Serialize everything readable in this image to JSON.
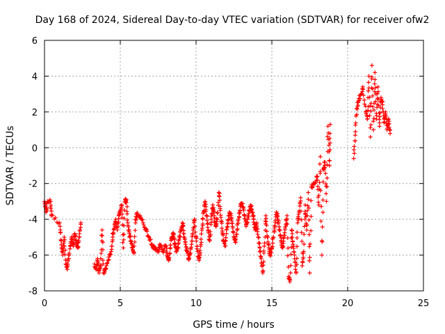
{
  "chart_data": {
    "type": "scatter",
    "title": "Day 168 of 2024, Sidereal Day-to-day VTEC variation (SDTVAR) for receiver ofw2",
    "xlabel": "GPS time / hours",
    "ylabel": "SDTVAR / TECUs",
    "xlim": [
      0,
      25
    ],
    "ylim": [
      -8,
      6
    ],
    "xticks": [
      0,
      5,
      10,
      15,
      20,
      25
    ],
    "yticks": [
      -8,
      -6,
      -4,
      -2,
      0,
      2,
      4,
      6
    ],
    "grid": true,
    "marker": "+",
    "color": "#ff0000",
    "series": [
      {
        "name": "SDTVAR",
        "trace": [
          [
            0.0,
            -3.0
          ],
          [
            0.1,
            -3.6
          ],
          [
            0.2,
            -3.0
          ],
          [
            0.4,
            -3.0
          ],
          [
            0.45,
            -3.8
          ],
          [
            1.0,
            -4.2
          ],
          [
            1.1,
            -5.2
          ],
          [
            1.2,
            -6.0
          ],
          [
            1.3,
            -5.0
          ],
          [
            1.4,
            -6.5
          ],
          [
            1.5,
            -6.8
          ],
          [
            1.6,
            -6.2
          ],
          [
            1.7,
            -5.5
          ],
          [
            1.8,
            -5.0
          ],
          [
            1.9,
            -5.5
          ],
          [
            2.0,
            -4.8
          ],
          [
            2.1,
            -5.2
          ],
          [
            2.2,
            -5.6
          ],
          [
            2.3,
            -5.0
          ],
          [
            2.4,
            -4.2
          ],
          [
            3.3,
            -6.5
          ],
          [
            3.4,
            -6.8
          ],
          [
            3.5,
            -6.2
          ],
          [
            3.6,
            -7.0
          ],
          [
            3.7,
            -6.6
          ],
          [
            3.8,
            -4.6
          ],
          [
            3.9,
            -7.0
          ],
          [
            4.0,
            -6.8
          ],
          [
            4.2,
            -6.3
          ],
          [
            4.4,
            -5.8
          ],
          [
            4.5,
            -5.0
          ],
          [
            4.6,
            -4.5
          ],
          [
            4.7,
            -4.0
          ],
          [
            4.8,
            -4.6
          ],
          [
            4.9,
            -3.8
          ],
          [
            5.0,
            -3.5
          ],
          [
            5.1,
            -3.2
          ],
          [
            5.2,
            -5.6
          ],
          [
            5.3,
            -3.0
          ],
          [
            5.4,
            -2.9
          ],
          [
            5.5,
            -4.2
          ],
          [
            5.6,
            -4.8
          ],
          [
            5.7,
            -5.2
          ],
          [
            5.8,
            -5.6
          ],
          [
            5.9,
            -5.9
          ],
          [
            6.0,
            -4.0
          ],
          [
            6.1,
            -3.7
          ],
          [
            6.3,
            -3.8
          ],
          [
            6.5,
            -4.2
          ],
          [
            6.7,
            -4.6
          ],
          [
            6.9,
            -5.0
          ],
          [
            7.1,
            -5.4
          ],
          [
            7.3,
            -5.7
          ],
          [
            7.5,
            -5.8
          ],
          [
            7.6,
            -5.4
          ],
          [
            7.8,
            -5.8
          ],
          [
            8.0,
            -5.5
          ],
          [
            8.1,
            -6.0
          ],
          [
            8.2,
            -6.3
          ],
          [
            8.3,
            -5.6
          ],
          [
            8.4,
            -5.0
          ],
          [
            8.5,
            -4.8
          ],
          [
            8.6,
            -5.4
          ],
          [
            8.7,
            -5.8
          ],
          [
            8.8,
            -5.6
          ],
          [
            8.9,
            -5.0
          ],
          [
            9.0,
            -4.6
          ],
          [
            9.1,
            -4.2
          ],
          [
            9.2,
            -4.8
          ],
          [
            9.3,
            -5.4
          ],
          [
            9.4,
            -5.8
          ],
          [
            9.5,
            -6.2
          ],
          [
            9.6,
            -6.0
          ],
          [
            9.7,
            -5.4
          ],
          [
            9.8,
            -4.6
          ],
          [
            9.9,
            -4.0
          ],
          [
            10.0,
            -5.0
          ],
          [
            10.1,
            -5.8
          ],
          [
            10.2,
            -6.3
          ],
          [
            10.3,
            -5.5
          ],
          [
            10.4,
            -4.5
          ],
          [
            10.5,
            -3.6
          ],
          [
            10.6,
            -3.0
          ],
          [
            10.7,
            -3.8
          ],
          [
            10.8,
            -4.6
          ],
          [
            10.9,
            -5.2
          ],
          [
            11.0,
            -4.0
          ],
          [
            11.1,
            -3.2
          ],
          [
            11.2,
            -3.8
          ],
          [
            11.3,
            -4.4
          ],
          [
            11.4,
            -4.0
          ],
          [
            11.5,
            -2.5
          ],
          [
            11.6,
            -3.5
          ],
          [
            11.7,
            -4.5
          ],
          [
            11.8,
            -5.2
          ],
          [
            11.9,
            -5.5
          ],
          [
            12.0,
            -4.8
          ],
          [
            12.1,
            -4.2
          ],
          [
            12.2,
            -3.6
          ],
          [
            12.3,
            -3.8
          ],
          [
            12.4,
            -4.4
          ],
          [
            12.5,
            -5.0
          ],
          [
            12.6,
            -5.3
          ],
          [
            12.7,
            -4.6
          ],
          [
            12.8,
            -4.0
          ],
          [
            12.9,
            -3.5
          ],
          [
            13.0,
            -3.1
          ],
          [
            13.1,
            -3.3
          ],
          [
            13.2,
            -3.8
          ],
          [
            13.3,
            -4.4
          ],
          [
            13.4,
            -4.0
          ],
          [
            13.5,
            -3.5
          ],
          [
            13.6,
            -3.2
          ],
          [
            13.7,
            -3.6
          ],
          [
            13.8,
            -4.0
          ],
          [
            13.9,
            -4.6
          ],
          [
            14.0,
            -4.2
          ],
          [
            14.1,
            -5.0
          ],
          [
            14.2,
            -5.6
          ],
          [
            14.3,
            -6.2
          ],
          [
            14.4,
            -7.0
          ],
          [
            14.5,
            -5.5
          ],
          [
            14.6,
            -3.8
          ],
          [
            14.7,
            -5.0
          ],
          [
            14.8,
            -5.6
          ],
          [
            14.9,
            -6.0
          ],
          [
            15.0,
            -5.6
          ],
          [
            15.1,
            -5.0
          ],
          [
            15.2,
            -4.4
          ],
          [
            15.3,
            -3.6
          ],
          [
            15.4,
            -4.0
          ],
          [
            15.5,
            -4.6
          ],
          [
            15.6,
            -5.2
          ],
          [
            15.7,
            -5.6
          ],
          [
            15.8,
            -5.0
          ],
          [
            15.9,
            -4.4
          ],
          [
            16.0,
            -3.8
          ],
          [
            16.1,
            -7.2
          ],
          [
            16.2,
            -7.4
          ],
          [
            16.3,
            -4.6
          ],
          [
            16.4,
            -5.4
          ],
          [
            16.5,
            -6.2
          ],
          [
            16.6,
            -7.0
          ],
          [
            16.7,
            -4.2
          ],
          [
            16.8,
            -3.6
          ],
          [
            16.9,
            -2.8
          ],
          [
            17.0,
            -6.6
          ],
          [
            17.1,
            -5.8
          ],
          [
            17.2,
            -3.2
          ],
          [
            17.3,
            -4.6
          ],
          [
            17.4,
            -2.5
          ],
          [
            17.5,
            -7.0
          ],
          [
            17.6,
            -2.2
          ],
          [
            17.8,
            -2.0
          ],
          [
            18.0,
            -1.6
          ],
          [
            18.1,
            -3.2
          ],
          [
            18.2,
            -0.5
          ],
          [
            18.3,
            -6.0
          ],
          [
            18.4,
            -1.2
          ],
          [
            18.5,
            -0.8
          ],
          [
            18.6,
            -3.0
          ],
          [
            18.7,
            1.2
          ],
          [
            18.8,
            -1.0
          ],
          [
            18.85,
            1.3
          ],
          [
            20.4,
            -0.6
          ],
          [
            20.5,
            0.7
          ],
          [
            20.6,
            2.2
          ],
          [
            20.7,
            2.6
          ],
          [
            20.9,
            3.0
          ],
          [
            21.0,
            3.4
          ],
          [
            21.2,
            2.0
          ],
          [
            21.3,
            1.6
          ],
          [
            21.4,
            4.0
          ],
          [
            21.5,
            0.6
          ],
          [
            21.6,
            4.6
          ],
          [
            21.7,
            1.0
          ],
          [
            21.8,
            4.2
          ],
          [
            21.9,
            1.6
          ],
          [
            22.0,
            3.4
          ],
          [
            22.1,
            1.2
          ],
          [
            22.2,
            2.8
          ],
          [
            22.3,
            2.4
          ],
          [
            22.4,
            1.4
          ],
          [
            22.5,
            2.0
          ],
          [
            22.6,
            1.0
          ],
          [
            22.7,
            1.6
          ],
          [
            22.8,
            0.8
          ]
        ]
      }
    ]
  }
}
